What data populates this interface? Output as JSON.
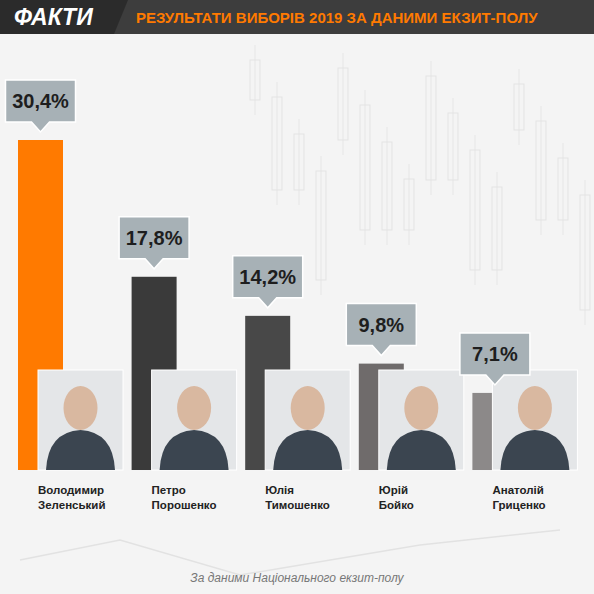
{
  "logo": "ФАКТИ",
  "chart_data": {
    "type": "bar",
    "title": "РЕЗУЛЬТАТИ ВИБОРІВ 2019 ЗА ДАНИМИ ЕКЗИТ-ПОЛУ",
    "categories": [
      "Володимир Зеленський",
      "Петро Порошенко",
      "Юлія Тимошенко",
      "Юрій Бойко",
      "Анатолій Гриценко"
    ],
    "values": [
      30.4,
      17.8,
      14.2,
      9.8,
      7.1
    ],
    "value_labels": [
      "30,4%",
      "17,8%",
      "14,2%",
      "9,8%",
      "7,1%"
    ],
    "colors": [
      "#ff7a00",
      "#3a3a3a",
      "#484848",
      "#6f6b6b",
      "#8c8989"
    ],
    "data_labels": true,
    "tick_labels": false,
    "source": "За даними Національного екзит-полу"
  }
}
